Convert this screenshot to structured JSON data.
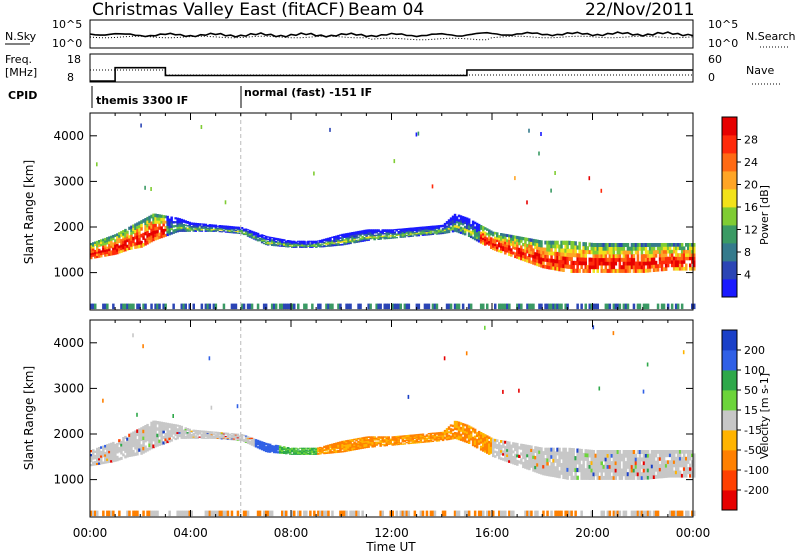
{
  "header": {
    "station": "Christmas Valley East (fitACF)",
    "beam": "Beam 04",
    "date": "22/Nov/2011"
  },
  "summary": {
    "nsky_label": "N.Sky",
    "nsearch_label": "N.Search",
    "freq_label": "Freq.",
    "freq_unit": "[MHz]",
    "nave_label": "Nave",
    "cpid_label": "CPID",
    "left_ticks_top": [
      "10^5",
      "10^0"
    ],
    "right_ticks_top": [
      "10^5",
      "10^0"
    ],
    "left_ticks_freq": [
      "18",
      "8"
    ],
    "right_ticks_nave": [
      "60",
      "0"
    ],
    "cpid_segments": [
      {
        "label": "themis 3300 IF",
        "start_hour": 0,
        "end_hour": 6
      },
      {
        "label": "normal (fast) -151 IF",
        "start_hour": 6,
        "end_hour": 24
      }
    ],
    "freq_steps": [
      {
        "start_hour": 0,
        "end_hour": 1,
        "mhz": 8.4
      },
      {
        "start_hour": 1,
        "end_hour": 3,
        "mhz": 13.5
      },
      {
        "start_hour": 3,
        "end_hour": 15,
        "mhz": 10.5
      },
      {
        "start_hour": 15,
        "end_hour": 24,
        "mhz": 12.6
      }
    ]
  },
  "axes": {
    "ylabel": "Slant Range [km]",
    "xlabel": "Time UT",
    "xticks": [
      "00:00",
      "04:00",
      "08:00",
      "12:00",
      "16:00",
      "20:00",
      "00:00"
    ],
    "yticks": [
      "1000",
      "2000",
      "3000",
      "4000"
    ],
    "xlim_hours": [
      0,
      24
    ],
    "ylim_km": [
      180,
      4500
    ]
  },
  "chart_data": [
    {
      "type": "heatmap",
      "panel": "power",
      "xlabel": "Time UT",
      "ylabel": "Slant Range [km]",
      "colorbar_label": "Power [dB]",
      "colorbar_ticks": [
        4,
        8,
        12,
        16,
        20,
        24,
        28
      ],
      "colorbar_range": [
        0,
        30
      ],
      "colors": [
        "#1a1aff",
        "#2b45b5",
        "#347a8c",
        "#3a9a64",
        "#7fcc33",
        "#f2e21a",
        "#ffa526",
        "#ff6a14",
        "#ff2a0a",
        "#e60000"
      ],
      "ranges": [
        {
          "name": "main-band-1",
          "band": [
            [
              0,
              1300,
              1650
            ],
            [
              0.5,
              1350,
              1750
            ],
            [
              1,
              1400,
              1850
            ],
            [
              1.5,
              1500,
              2000
            ],
            [
              2,
              1550,
              2150
            ],
            [
              2.5,
              1700,
              2300
            ],
            [
              3,
              1800,
              2250
            ],
            [
              3.5,
              1900,
              2200
            ],
            [
              4,
              1900,
              2100
            ],
            [
              5,
              1900,
              2050
            ],
            [
              6,
              1850,
              2000
            ],
            [
              7,
              1600,
              1800
            ],
            [
              8,
              1550,
              1700
            ],
            [
              9,
              1550,
              1700
            ],
            [
              10,
              1600,
              1850
            ],
            [
              11,
              1700,
              1950
            ],
            [
              12,
              1750,
              1950
            ],
            [
              13,
              1800,
              2000
            ],
            [
              14,
              1850,
              2050
            ],
            [
              14.5,
              1900,
              2300
            ],
            [
              15,
              1800,
              2200
            ],
            [
              16,
              1500,
              1900
            ],
            [
              17,
              1300,
              1800
            ],
            [
              18,
              1100,
              1700
            ],
            [
              19,
              1000,
              1700
            ],
            [
              20,
              1000,
              1650
            ],
            [
              21,
              1000,
              1650
            ],
            [
              22,
              1000,
              1650
            ],
            [
              23,
              1050,
              1650
            ],
            [
              24,
              1050,
              1650
            ]
          ]
        },
        {
          "name": "ground-scatter-near",
          "band": [
            [
              0,
              200,
              320
            ],
            [
              24,
              200,
              320
            ]
          ]
        }
      ]
    },
    {
      "type": "heatmap",
      "panel": "velocity",
      "xlabel": "Time UT",
      "ylabel": "Slant Range [km]",
      "colorbar_label": "Velocity [m s-1]",
      "colorbar_tick_labels": [
        "200",
        "100",
        "50",
        "15",
        "-15",
        "-50",
        "-100",
        "-200"
      ],
      "colorbar_range": [
        -250,
        250
      ],
      "colors": [
        "#1a40c8",
        "#3060e6",
        "#2ea84a",
        "#6cd43a",
        "#c7c7c7",
        "#ffb400",
        "#ff8000",
        "#ff4000",
        "#e60000"
      ],
      "ranges": [
        {
          "name": "main-band-1",
          "band": [
            [
              0,
              1300,
              1650
            ],
            [
              0.5,
              1350,
              1750
            ],
            [
              1,
              1400,
              1850
            ],
            [
              1.5,
              1500,
              2000
            ],
            [
              2,
              1550,
              2150
            ],
            [
              2.5,
              1700,
              2300
            ],
            [
              3,
              1800,
              2250
            ],
            [
              3.5,
              1900,
              2200
            ],
            [
              4,
              1900,
              2100
            ],
            [
              5,
              1900,
              2050
            ],
            [
              6,
              1850,
              2000
            ],
            [
              7,
              1600,
              1800
            ],
            [
              8,
              1550,
              1700
            ],
            [
              9,
              1550,
              1700
            ],
            [
              10,
              1600,
              1850
            ],
            [
              11,
              1700,
              1950
            ],
            [
              12,
              1750,
              1950
            ],
            [
              13,
              1800,
              2000
            ],
            [
              14,
              1850,
              2050
            ],
            [
              14.5,
              1900,
              2300
            ],
            [
              15,
              1800,
              2200
            ],
            [
              16,
              1500,
              1900
            ],
            [
              17,
              1300,
              1800
            ],
            [
              18,
              1100,
              1700
            ],
            [
              19,
              1000,
              1700
            ],
            [
              20,
              1000,
              1650
            ],
            [
              21,
              1000,
              1650
            ],
            [
              22,
              1000,
              1650
            ],
            [
              23,
              1050,
              1650
            ],
            [
              24,
              1050,
              1650
            ]
          ]
        },
        {
          "name": "ground-scatter-near",
          "band": [
            [
              0,
              200,
              320
            ],
            [
              24,
              200,
              320
            ]
          ]
        }
      ]
    }
  ]
}
